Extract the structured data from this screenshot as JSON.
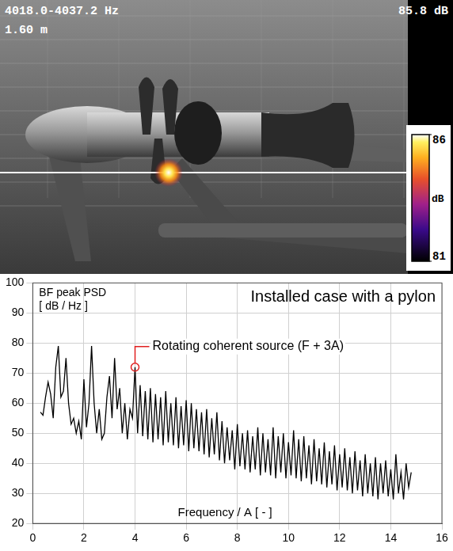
{
  "beamforming_map": {
    "band": "4018.0-4037.2 Hz",
    "distance": "1.60 m",
    "peak_level": "85.8 dB",
    "colorbar": {
      "label": "dB",
      "range": [
        81,
        86
      ],
      "ticks": [
        81,
        86
      ]
    }
  },
  "chart_data": {
    "type": "line",
    "title": "Installed case with a pylon",
    "ylabel": [
      "BF peak PSD",
      "[ dB / Hz ]"
    ],
    "xlabel": "Frequency / A [ - ]",
    "series": [
      {
        "color": "#000000",
        "line_style": "solid",
        "x": [
          0.3,
          0.4,
          0.5,
          0.6,
          0.7,
          0.8,
          0.9,
          1.0,
          1.1,
          1.2,
          1.3,
          1.4,
          1.5,
          1.6,
          1.7,
          1.8,
          1.9,
          2.0,
          2.1,
          2.2,
          2.3,
          2.4,
          2.5,
          2.6,
          2.7,
          2.8,
          2.9,
          3.0,
          3.1,
          3.2,
          3.3,
          3.4,
          3.5,
          3.6,
          3.7,
          3.8,
          3.9,
          4.0,
          4.1,
          4.2,
          4.3,
          4.4,
          4.5,
          4.6,
          4.7,
          4.8,
          4.9,
          5.0,
          5.1,
          5.2,
          5.3,
          5.4,
          5.5,
          5.6,
          5.7,
          5.8,
          5.9,
          6.0,
          6.1,
          6.2,
          6.3,
          6.4,
          6.5,
          6.6,
          6.7,
          6.8,
          6.9,
          7.0,
          7.1,
          7.2,
          7.3,
          7.4,
          7.5,
          7.6,
          7.7,
          7.8,
          7.9,
          8.0,
          8.1,
          8.2,
          8.3,
          8.4,
          8.5,
          8.6,
          8.7,
          8.8,
          8.9,
          9.0,
          9.1,
          9.2,
          9.3,
          9.4,
          9.5,
          9.6,
          9.7,
          9.8,
          9.9,
          10.0,
          10.1,
          10.2,
          10.3,
          10.4,
          10.5,
          10.6,
          10.7,
          10.8,
          10.9,
          11.0,
          11.1,
          11.2,
          11.3,
          11.4,
          11.5,
          11.6,
          11.7,
          11.8,
          11.9,
          12.0,
          12.1,
          12.2,
          12.3,
          12.4,
          12.5,
          12.6,
          12.7,
          12.8,
          12.9,
          13.0,
          13.1,
          13.2,
          13.3,
          13.4,
          13.5,
          13.6,
          13.7,
          13.8,
          13.9,
          14.0,
          14.1,
          14.2,
          14.3,
          14.4,
          14.5,
          14.6,
          14.7,
          14.8
        ],
        "values": [
          57,
          56,
          62,
          67,
          63,
          55,
          72,
          79,
          62,
          64,
          75,
          60,
          53,
          55,
          50,
          54,
          48,
          68,
          52,
          60,
          79,
          60,
          50,
          58,
          48,
          50,
          62,
          69,
          55,
          75,
          58,
          65,
          50,
          60,
          48,
          58,
          55,
          72,
          50,
          66,
          49,
          64,
          48,
          65,
          47,
          63,
          48,
          62,
          46,
          64,
          47,
          60,
          46,
          62,
          45,
          59,
          46,
          61,
          44,
          60,
          45,
          58,
          44,
          57,
          43,
          58,
          42,
          55,
          43,
          57,
          41,
          54,
          40,
          52,
          41,
          51,
          38,
          53,
          39,
          50,
          38,
          51,
          37,
          49,
          38,
          52,
          36,
          50,
          37,
          48,
          36,
          52,
          35,
          49,
          37,
          50,
          35,
          47,
          36,
          51,
          35,
          48,
          34,
          49,
          35,
          46,
          33,
          48,
          34,
          45,
          33,
          47,
          32,
          44,
          33,
          46,
          31,
          43,
          32,
          45,
          31,
          42,
          30,
          44,
          31,
          41,
          29,
          43,
          30,
          40,
          29,
          42,
          28,
          40,
          30,
          41,
          29,
          38,
          28,
          43,
          30,
          37,
          28,
          40,
          32,
          37
        ]
      }
    ],
    "xlim": [
      0,
      16
    ],
    "xticks": [
      0,
      2,
      4,
      6,
      8,
      10,
      12,
      14,
      16
    ],
    "ylim": [
      20,
      100
    ],
    "yticks": [
      20,
      30,
      40,
      50,
      60,
      70,
      80,
      90,
      100
    ],
    "grid": true,
    "annotation": {
      "text": "Rotating coherent source (F + 3A)",
      "x": 4.0,
      "y": 72,
      "color": "#e02020"
    }
  }
}
